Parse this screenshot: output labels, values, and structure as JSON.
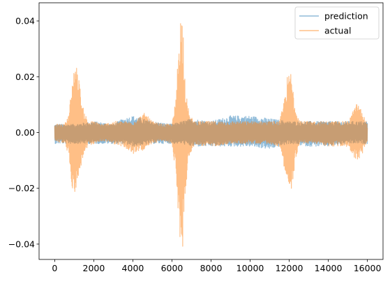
{
  "chart_data": {
    "type": "line",
    "title": "",
    "xlabel": "",
    "ylabel": "",
    "xlim": [
      -800,
      16800
    ],
    "ylim": [
      -0.0455,
      0.0465
    ],
    "x_ticks": [
      0,
      2000,
      4000,
      6000,
      8000,
      10000,
      12000,
      14000,
      16000
    ],
    "x_tick_labels": [
      "0",
      "2000",
      "4000",
      "6000",
      "8000",
      "10000",
      "12000",
      "14000",
      "16000"
    ],
    "y_ticks": [
      -0.04,
      -0.02,
      0.0,
      0.02,
      0.04
    ],
    "y_tick_labels": [
      "−0.04",
      "−0.02",
      "0.00",
      "0.02",
      "0.04"
    ],
    "grid": false,
    "legend_position": "top-right",
    "n_samples": 16000,
    "series": [
      {
        "name": "prediction",
        "color": "#1f77b4",
        "alpha": 0.5,
        "envelope_x": [
          0,
          1000,
          2000,
          3000,
          3500,
          4000,
          5000,
          6000,
          6500,
          7000,
          8000,
          9000,
          10000,
          11000,
          12000,
          13000,
          14000,
          15000,
          16000
        ],
        "envelope_upper": [
          0.003,
          0.003,
          0.004,
          0.003,
          0.005,
          0.006,
          0.004,
          0.003,
          0.004,
          0.005,
          0.004,
          0.006,
          0.006,
          0.005,
          0.004,
          0.004,
          0.004,
          0.004,
          0.004
        ],
        "envelope_lower": [
          -0.004,
          -0.004,
          -0.004,
          -0.004,
          -0.004,
          -0.005,
          -0.004,
          -0.004,
          -0.004,
          -0.005,
          -0.005,
          -0.005,
          -0.005,
          -0.006,
          -0.004,
          -0.005,
          -0.005,
          -0.004,
          -0.004
        ]
      },
      {
        "name": "actual",
        "color": "#ff7f0e",
        "alpha": 0.5,
        "envelope_x": [
          0,
          500,
          700,
          900,
          1000,
          1200,
          1400,
          1700,
          2000,
          2500,
          3000,
          3500,
          4000,
          4400,
          4600,
          5000,
          5500,
          6000,
          6200,
          6400,
          6550,
          6700,
          6900,
          7200,
          7600,
          8000,
          9000,
          10000,
          11000,
          11500,
          11700,
          11900,
          12100,
          12300,
          12500,
          12700,
          13000,
          13500,
          14000,
          14500,
          15000,
          15500,
          16000
        ],
        "envelope_upper": [
          0.003,
          0.003,
          0.006,
          0.018,
          0.026,
          0.022,
          0.01,
          0.004,
          0.004,
          0.003,
          0.004,
          0.004,
          0.004,
          0.006,
          0.007,
          0.004,
          0.003,
          0.003,
          0.012,
          0.042,
          0.043,
          0.015,
          0.006,
          0.004,
          0.004,
          0.004,
          0.004,
          0.004,
          0.004,
          0.004,
          0.01,
          0.02,
          0.022,
          0.01,
          0.005,
          0.004,
          0.004,
          0.004,
          0.004,
          0.004,
          0.004,
          0.011,
          0.003
        ],
        "envelope_lower": [
          -0.003,
          -0.004,
          -0.008,
          -0.02,
          -0.022,
          -0.018,
          -0.01,
          -0.005,
          -0.004,
          -0.003,
          -0.004,
          -0.005,
          -0.008,
          -0.006,
          -0.007,
          -0.004,
          -0.003,
          -0.004,
          -0.015,
          -0.039,
          -0.041,
          -0.02,
          -0.008,
          -0.004,
          -0.005,
          -0.005,
          -0.004,
          -0.004,
          -0.004,
          -0.005,
          -0.011,
          -0.018,
          -0.025,
          -0.01,
          -0.005,
          -0.004,
          -0.004,
          -0.004,
          -0.005,
          -0.005,
          -0.005,
          -0.011,
          -0.004
        ]
      }
    ]
  }
}
